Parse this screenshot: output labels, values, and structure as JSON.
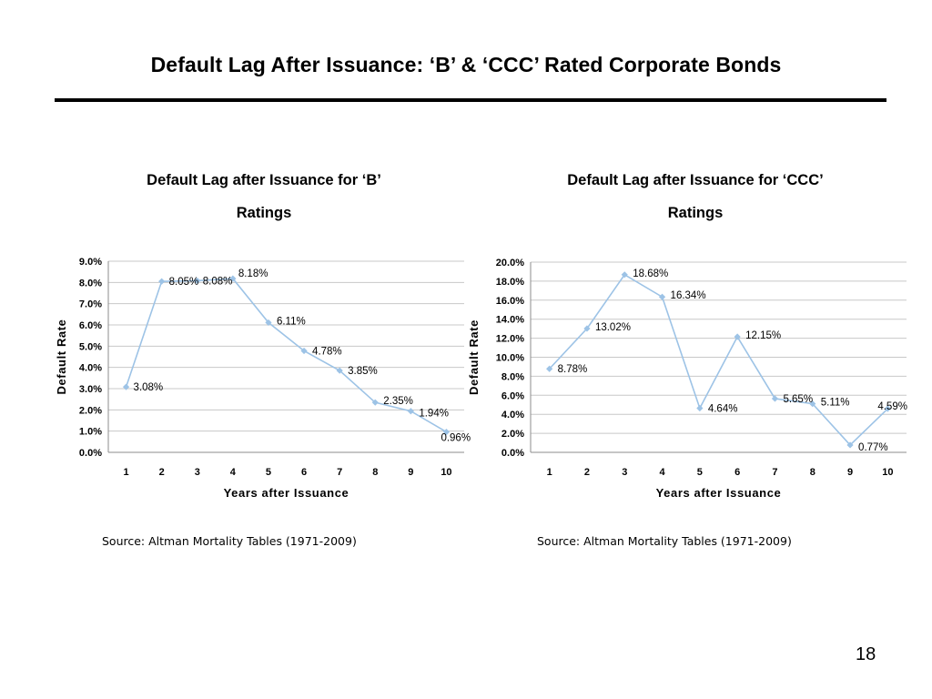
{
  "slide": {
    "title": "Default Lag After Issuance: ‘B’ & ‘CCC’ Rated Corporate Bonds",
    "page_number": "18",
    "series_color": "#9DC3E6"
  },
  "chart_data": [
    {
      "type": "line",
      "title_line1": "Default Lag after Issuance for ‘B’",
      "title_line2": "Ratings",
      "xlabel": "Years after Issuance",
      "ylabel": "Default Rate",
      "x": [
        1,
        2,
        3,
        4,
        5,
        6,
        7,
        8,
        9,
        10
      ],
      "y_ticks": [
        "0.0%",
        "1.0%",
        "2.0%",
        "3.0%",
        "4.0%",
        "5.0%",
        "6.0%",
        "7.0%",
        "8.0%",
        "9.0%"
      ],
      "ylim": [
        0,
        9
      ],
      "grid": true,
      "values": [
        3.08,
        8.05,
        8.08,
        8.18,
        6.11,
        4.78,
        3.85,
        2.35,
        1.94,
        0.96
      ],
      "data_labels": [
        "3.08%",
        "8.05%",
        "8.08%",
        "8.18%",
        "6.11%",
        "4.78%",
        "3.85%",
        "2.35%",
        "1.94%",
        "0.96%"
      ],
      "source": "Source: Altman Mortality Tables (1971-2009)"
    },
    {
      "type": "line",
      "title_line1": "Default Lag after Issuance for ‘CCC’",
      "title_line2": "Ratings",
      "xlabel": "Years after Issuance",
      "ylabel": "Default Rate",
      "x": [
        1,
        2,
        3,
        4,
        5,
        6,
        7,
        8,
        9,
        10
      ],
      "y_ticks": [
        "0.0%",
        "2.0%",
        "4.0%",
        "6.0%",
        "8.0%",
        "10.0%",
        "12.0%",
        "14.0%",
        "16.0%",
        "18.0%",
        "20.0%"
      ],
      "ylim": [
        0,
        20
      ],
      "grid": true,
      "values": [
        8.78,
        13.02,
        18.68,
        16.34,
        4.64,
        12.15,
        5.65,
        5.11,
        0.77,
        4.59
      ],
      "data_labels": [
        "8.78%",
        "13.02%",
        "18.68%",
        "16.34%",
        "4.64%",
        "12.15%",
        "5.65%",
        "5.11%",
        "0.77%",
        "4.59%"
      ],
      "source": "Source: Altman Mortality Tables (1971-2009)"
    }
  ]
}
